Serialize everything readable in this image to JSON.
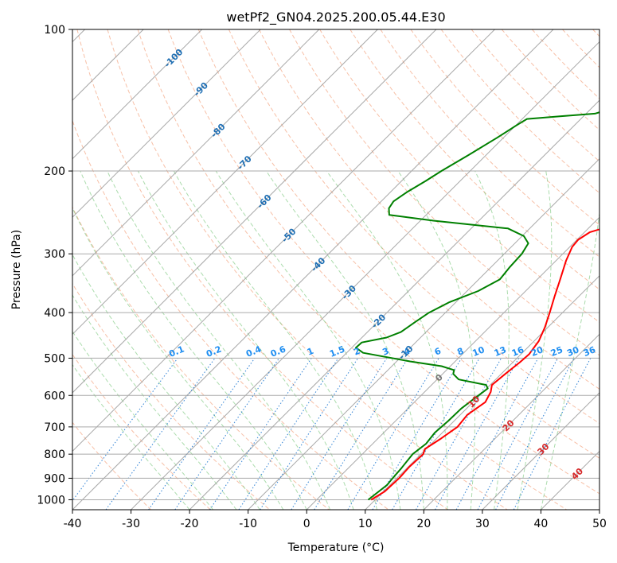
{
  "chart_data": {
    "type": "line",
    "title": "wetPf2_GN04.2025.200.05.44.E30",
    "xlabel": "Temperature (°C)",
    "ylabel": "Pressure (hPa)",
    "xlim": [
      -40,
      50
    ],
    "ylim": [
      1050,
      100
    ],
    "y_scale": "log",
    "x_ticks": [
      -40,
      -30,
      -20,
      -10,
      0,
      10,
      20,
      30,
      40,
      50
    ],
    "y_ticks": [
      100,
      200,
      300,
      400,
      500,
      600,
      700,
      800,
      900,
      1000
    ],
    "grid": true,
    "background_lines": {
      "isotherms_skew": true,
      "dry_adiabats_color": "#f4a582",
      "moist_adiabats_color": "#74c476",
      "mixing_ratio_color": "#1f78d1"
    },
    "series": [
      {
        "color": "#ff0000",
        "points": [
          [
            9.3,
            1000
          ],
          [
            10.2,
            960
          ],
          [
            10.4,
            900
          ],
          [
            10.2,
            850
          ],
          [
            10.4,
            800
          ],
          [
            9.8,
            780
          ],
          [
            10.8,
            740
          ],
          [
            11.6,
            700
          ],
          [
            11.2,
            660
          ],
          [
            12.1,
            620
          ],
          [
            11.3,
            590
          ],
          [
            10.3,
            570
          ],
          [
            10.7,
            540
          ],
          [
            11.2,
            510
          ],
          [
            11.4,
            490
          ],
          [
            10.8,
            460
          ],
          [
            9.5,
            430
          ],
          [
            7.8,
            400
          ],
          [
            5.9,
            370
          ],
          [
            3.9,
            340
          ],
          [
            1.7,
            310
          ],
          [
            0.4,
            290
          ],
          [
            0.2,
            280
          ],
          [
            0.9,
            270
          ],
          [
            3.3,
            262
          ],
          [
            8.3,
            250
          ],
          [
            11.5,
            240
          ],
          [
            14.3,
            230
          ],
          [
            16.2,
            220
          ],
          [
            17.5,
            210
          ],
          [
            18.8,
            200
          ],
          [
            20.3,
            190
          ],
          [
            22.0,
            180
          ],
          [
            23.3,
            170
          ],
          [
            24.0,
            160
          ],
          [
            24.4,
            150
          ],
          [
            25.2,
            140
          ],
          [
            26.7,
            130
          ],
          [
            28.6,
            120
          ],
          [
            30.8,
            112
          ],
          [
            32.4,
            106
          ],
          [
            34.0,
            100
          ]
        ]
      },
      {
        "color": "#008000",
        "points": [
          [
            8.8,
            1000
          ],
          [
            9.1,
            970
          ],
          [
            9.5,
            930
          ],
          [
            9.3,
            900
          ],
          [
            9.1,
            860
          ],
          [
            8.6,
            800
          ],
          [
            9.1,
            760
          ],
          [
            8.7,
            720
          ],
          [
            9.0,
            680
          ],
          [
            9.1,
            640
          ],
          [
            9.6,
            610
          ],
          [
            10.0,
            590
          ],
          [
            10.2,
            580
          ],
          [
            9.3,
            570
          ],
          [
            3.7,
            555
          ],
          [
            1.8,
            540
          ],
          [
            1.3,
            530
          ],
          [
            -1.5,
            520
          ],
          [
            -7.7,
            508
          ],
          [
            -17.2,
            487
          ],
          [
            -19.3,
            475
          ],
          [
            -19.2,
            463
          ],
          [
            -15.8,
            452
          ],
          [
            -14.3,
            440
          ],
          [
            -13.6,
            420
          ],
          [
            -12.8,
            400
          ],
          [
            -11.1,
            380
          ],
          [
            -8.1,
            360
          ],
          [
            -6.4,
            340
          ],
          [
            -6.8,
            320
          ],
          [
            -7.0,
            300
          ],
          [
            -7.7,
            285
          ],
          [
            -9.7,
            275
          ],
          [
            -13.7,
            265
          ],
          [
            -27.8,
            255
          ],
          [
            -36.3,
            248
          ],
          [
            -37.5,
            240
          ],
          [
            -37.9,
            232
          ],
          [
            -37.2,
            222
          ],
          [
            -35.9,
            210
          ],
          [
            -34.9,
            200
          ],
          [
            -33.0,
            185
          ],
          [
            -31.1,
            170
          ],
          [
            -29.9,
            160
          ],
          [
            -29.2,
            155
          ],
          [
            -24.0,
            153
          ],
          [
            -18.5,
            151
          ],
          [
            -16.9,
            148
          ],
          [
            -14.8,
            142
          ],
          [
            -13.4,
            135
          ],
          [
            -12.0,
            126
          ],
          [
            -10.5,
            118
          ],
          [
            -8.6,
            112
          ],
          [
            -6.5,
            106
          ],
          [
            -4.4,
            100
          ]
        ]
      }
    ],
    "isotherm_labels": [
      {
        "value": "-100",
        "p": 115
      },
      {
        "value": "-90",
        "p": 134
      },
      {
        "value": "-80",
        "p": 164
      },
      {
        "value": "-70",
        "p": 192
      },
      {
        "value": "-60",
        "p": 232
      },
      {
        "value": "-50",
        "p": 274
      },
      {
        "value": "-40",
        "p": 316
      },
      {
        "value": "-30",
        "p": 362
      },
      {
        "value": "-20",
        "p": 417
      },
      {
        "value": "-10",
        "p": 486
      },
      {
        "value": "0",
        "p": 550
      },
      {
        "value": "10",
        "p": 618
      },
      {
        "value": "20",
        "p": 695
      },
      {
        "value": "30",
        "p": 780
      },
      {
        "value": "40",
        "p": 880
      }
    ],
    "mixing_ratio_labels": [
      "0.1",
      "0.2",
      "0.4",
      "0.6",
      "1",
      "1.5",
      "2",
      "3",
      "4",
      "6",
      "8",
      "10",
      "13",
      "16",
      "20",
      "25",
      "30",
      "36"
    ],
    "mixing_ratio_label_p": 500
  }
}
